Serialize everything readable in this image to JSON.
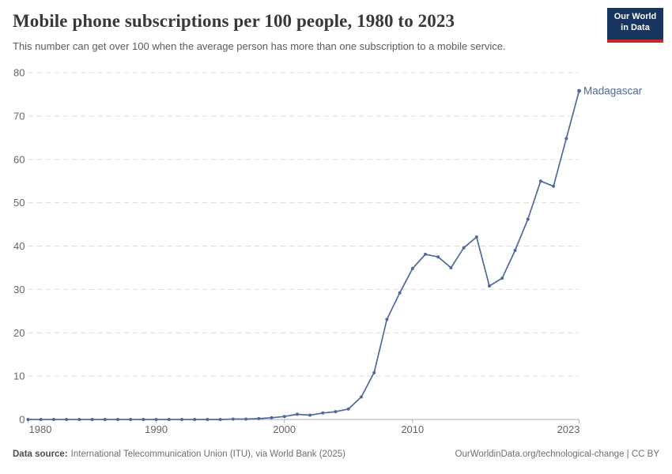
{
  "header": {
    "title": "Mobile phone subscriptions per 100 people, 1980 to 2023",
    "subtitle": "This number can get over 100 when the average person has more than one subscription to a mobile service.",
    "logo": {
      "line1": "Our World",
      "line2": "in Data",
      "bg_color": "#17355f",
      "bar_color": "#c52a28",
      "text_color": "#ffffff"
    }
  },
  "chart_data": {
    "type": "line",
    "title": "Mobile phone subscriptions per 100 people, 1980 to 2023",
    "xlabel": "",
    "ylabel": "",
    "xlim": [
      1980,
      2023
    ],
    "ylim": [
      0,
      80
    ],
    "x_ticks": [
      1980,
      1990,
      2000,
      2010,
      2023
    ],
    "y_ticks": [
      0,
      10,
      20,
      30,
      40,
      50,
      60,
      70,
      80
    ],
    "grid": "dashed-horizontal",
    "legend": "end-of-line-label",
    "x": [
      1980,
      1981,
      1982,
      1983,
      1984,
      1985,
      1986,
      1987,
      1988,
      1989,
      1990,
      1991,
      1992,
      1993,
      1994,
      1995,
      1996,
      1997,
      1998,
      1999,
      2000,
      2001,
      2002,
      2003,
      2004,
      2005,
      2006,
      2007,
      2008,
      2009,
      2010,
      2011,
      2012,
      2013,
      2014,
      2015,
      2016,
      2017,
      2018,
      2019,
      2020,
      2021,
      2022,
      2023
    ],
    "series": [
      {
        "name": "Madagascar",
        "color": "#4C6A9C",
        "values": [
          0,
          0,
          0,
          0,
          0,
          0,
          0,
          0,
          0,
          0,
          0,
          0,
          0,
          0,
          0,
          0,
          0.1,
          0.1,
          0.2,
          0.4,
          0.7,
          1.2,
          1.0,
          1.5,
          1.8,
          2.4,
          5.2,
          10.8,
          23.1,
          29.2,
          34.8,
          38.1,
          37.5,
          35.0,
          39.6,
          42.1,
          30.8,
          32.6,
          39.0,
          46.2,
          55.0,
          53.8,
          64.8,
          75.8
        ]
      }
    ]
  },
  "footer": {
    "datasource_label": "Data source:",
    "datasource_text": "International Telecommunication Union (ITU), via World Bank (2025)",
    "link_text": "OurWorldinData.org/technological-change | CC BY"
  }
}
